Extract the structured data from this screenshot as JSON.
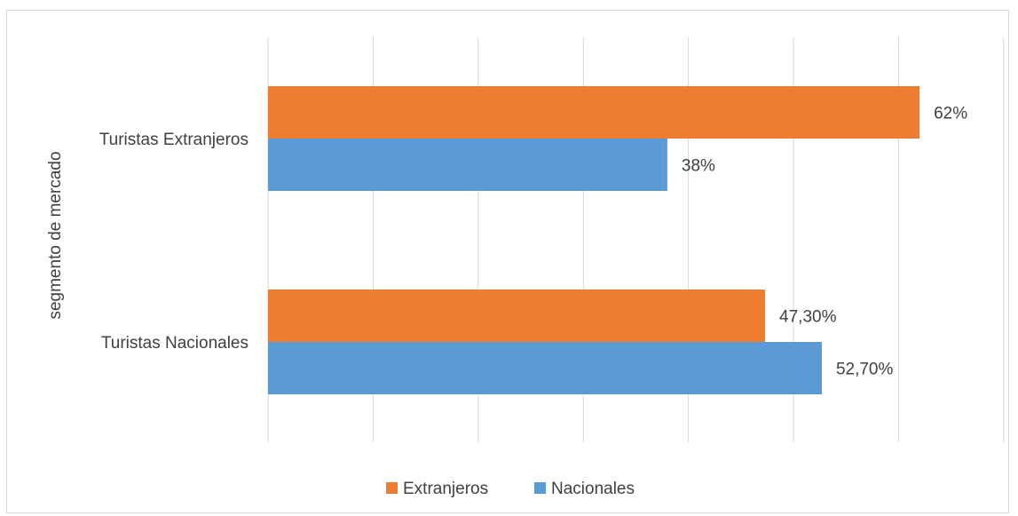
{
  "chart_data": {
    "type": "bar",
    "orientation": "horizontal",
    "title": "",
    "xlabel": "",
    "ylabel": "segmento de mercado",
    "categories": [
      "Turistas Extranjeros",
      "Turistas Nacionales"
    ],
    "series": [
      {
        "name": "Extranjeros",
        "color": "#ED7D31",
        "values": [
          62,
          47.3
        ],
        "labels": [
          "62%",
          "47,30%"
        ]
      },
      {
        "name": "Nacionales",
        "color": "#5B9BD5",
        "values": [
          38,
          52.7
        ],
        "labels": [
          "38%",
          "52,70%"
        ]
      }
    ],
    "xlim": [
      0,
      70
    ],
    "x_gridline_step": 10,
    "grid": true,
    "legend_position": "bottom"
  }
}
